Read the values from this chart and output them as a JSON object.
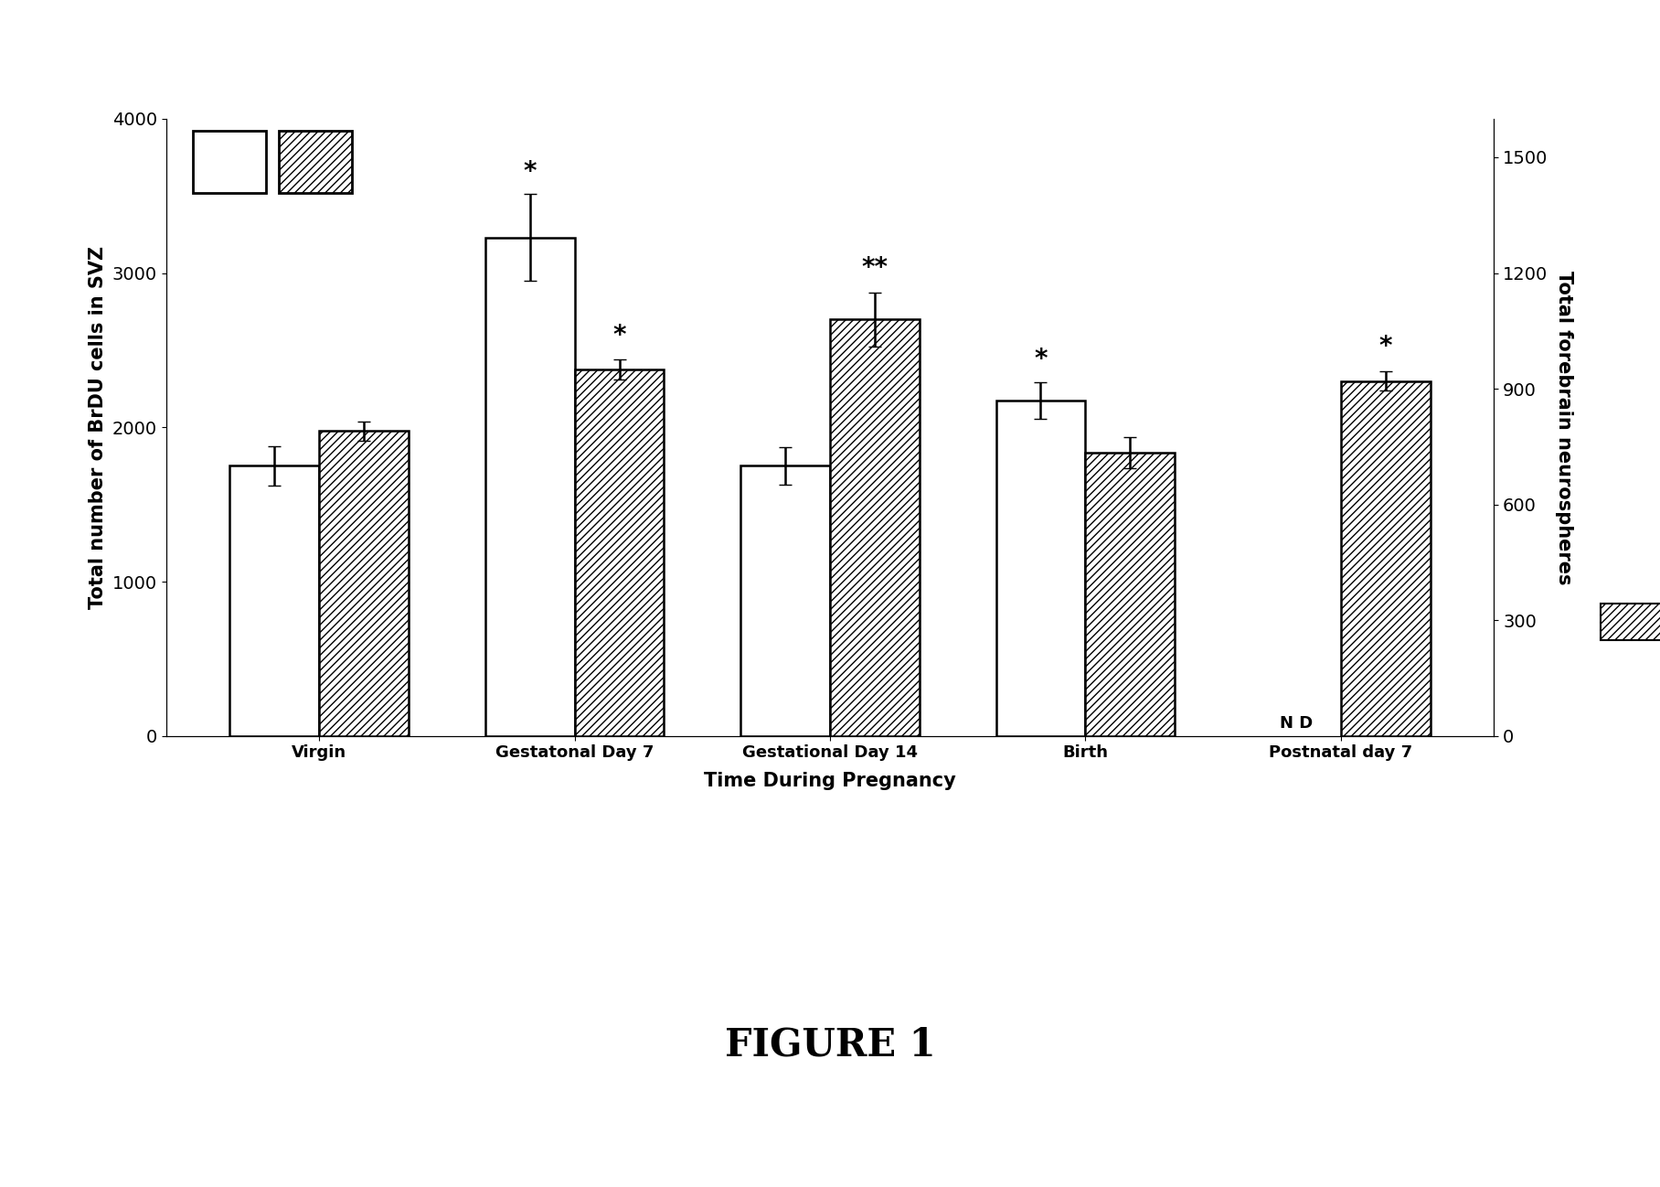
{
  "categories": [
    "Virgin",
    "Gestatonal Day 7",
    "Gestational Day 14",
    "Birth",
    "Postnatal day 7"
  ],
  "white_bars": [
    1750,
    3230,
    1750,
    2175,
    null
  ],
  "hatch_bars": [
    790,
    950,
    1080,
    735,
    920
  ],
  "white_errors": [
    130,
    280,
    120,
    120,
    null
  ],
  "hatch_errors": [
    25,
    25,
    70,
    40,
    25
  ],
  "white_sig": [
    null,
    "*",
    null,
    "*",
    null
  ],
  "hatch_sig": [
    null,
    "*",
    "**",
    null,
    "*"
  ],
  "nd_label": "N D",
  "xlabel": "Time During Pregnancy",
  "ylabel_left": "Total number of BrDU cells in SVZ",
  "ylabel_right": "Total forebrain neurospheres",
  "ylim_left": [
    0,
    4000
  ],
  "ylim_right": [
    0,
    1600
  ],
  "yticks_left": [
    0,
    1000,
    2000,
    3000,
    4000
  ],
  "yticks_right": [
    0,
    300,
    600,
    900,
    1200,
    1500
  ],
  "figure_label": "FIGURE 1",
  "bar_width": 0.35,
  "background_color": "#ffffff",
  "bar_color_white": "#ffffff",
  "bar_color_hatch": "#ffffff",
  "hatch_pattern": "////",
  "edge_color": "#000000"
}
